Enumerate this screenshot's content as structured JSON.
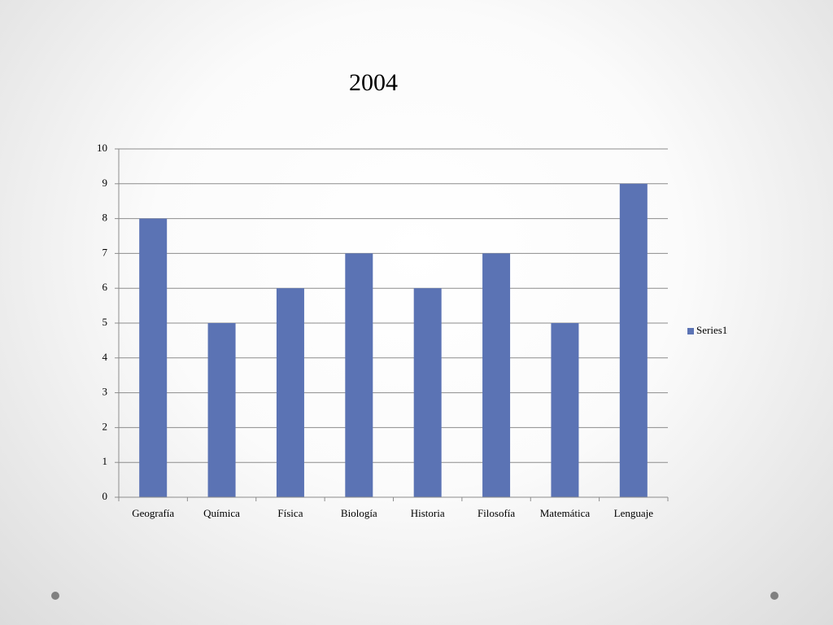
{
  "chart_data": {
    "type": "bar",
    "title": "2004",
    "categories": [
      "Geografía",
      "Química",
      "Física",
      "Biología",
      "Historia",
      "Filosofía",
      "Matemática",
      "Lenguaje"
    ],
    "series": [
      {
        "name": "Series1",
        "color": "#5b73b4",
        "values": [
          8,
          5,
          6,
          7,
          6,
          7,
          5,
          9
        ]
      }
    ],
    "ylim": [
      0,
      10
    ],
    "yticks": [
      0,
      1,
      2,
      3,
      4,
      5,
      6,
      7,
      8,
      9,
      10
    ],
    "grid": true,
    "legend": "right"
  }
}
